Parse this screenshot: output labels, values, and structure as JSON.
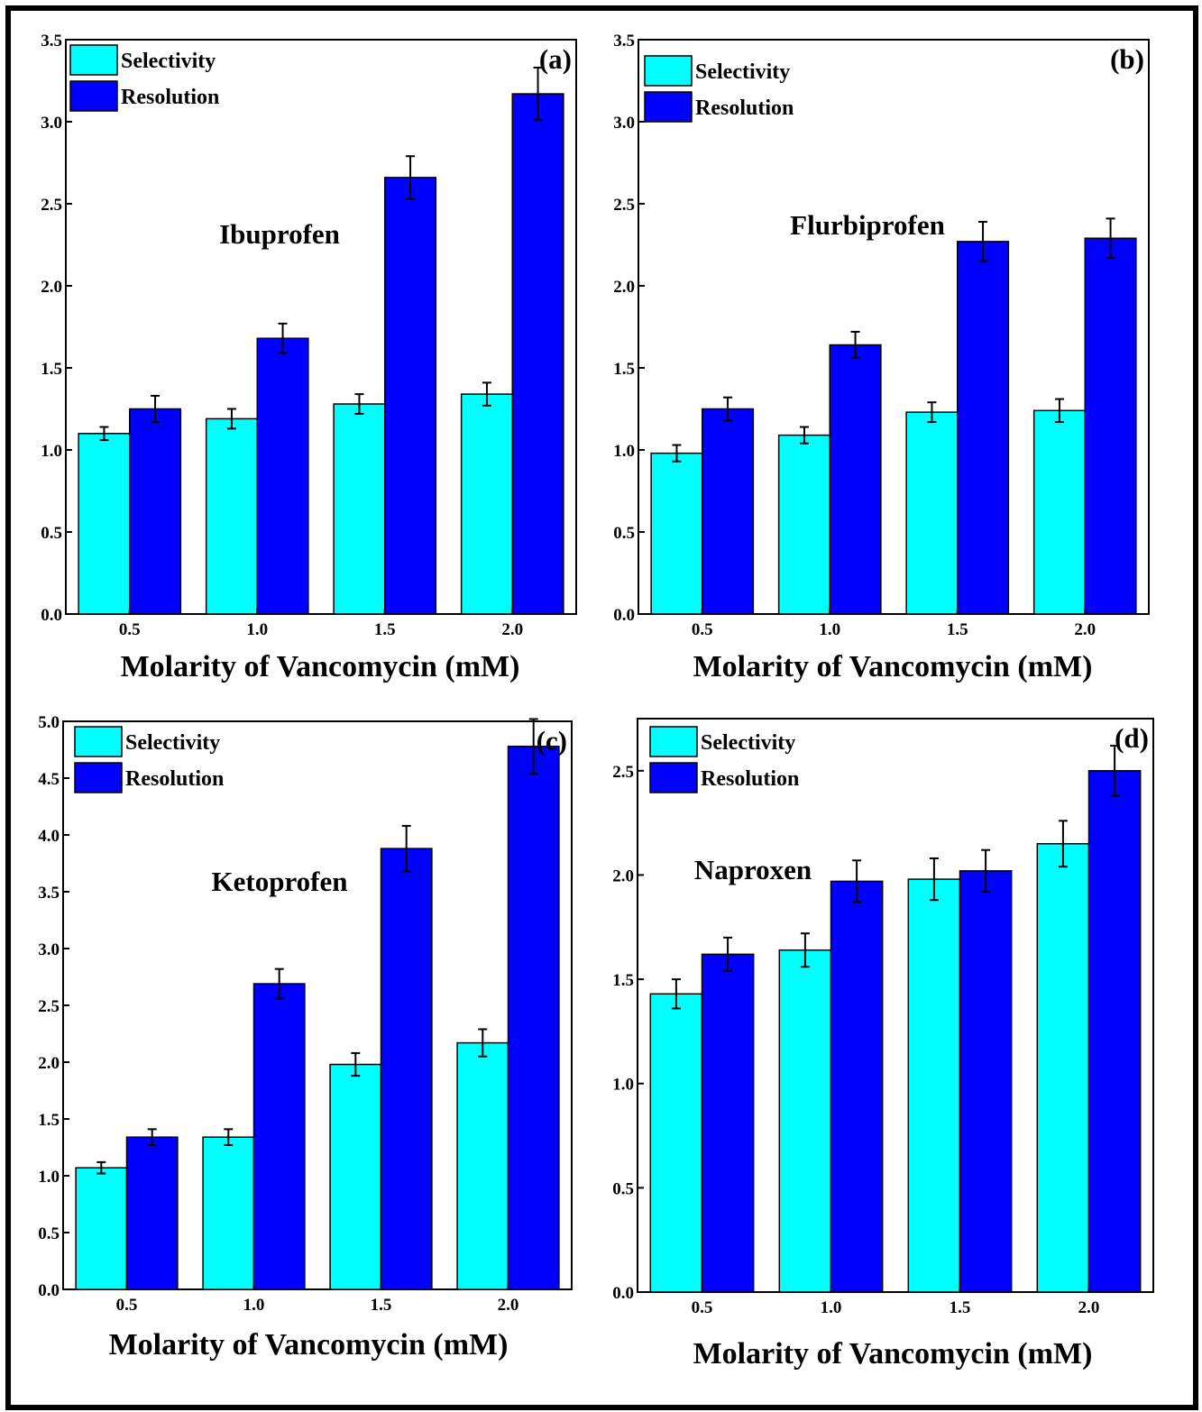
{
  "colors": {
    "selectivity": "#00FFFF",
    "resolution": "#0000FF",
    "frame": "#000000"
  },
  "chart_data": [
    {
      "type": "bar",
      "panel_label": "(a)",
      "title": "Ibuprofen",
      "xlabel": "Molarity of Vancomycin (mM)",
      "ylabel": "",
      "ylim": [
        0,
        3.5
      ],
      "yticks": [
        "0.0",
        "0.5",
        "1.0",
        "1.5",
        "2.0",
        "2.5",
        "3.0",
        "3.5"
      ],
      "legend_position": "top-left",
      "categories": [
        "0.5",
        "1.0",
        "1.5",
        "2.0"
      ],
      "series": [
        {
          "name": "Selectivity",
          "values": [
            1.1,
            1.19,
            1.28,
            1.34
          ],
          "errors": [
            0.04,
            0.06,
            0.06,
            0.07
          ]
        },
        {
          "name": "Resolution",
          "values": [
            1.25,
            1.68,
            2.66,
            3.17
          ],
          "errors": [
            0.08,
            0.09,
            0.13,
            0.16
          ]
        }
      ]
    },
    {
      "type": "bar",
      "panel_label": "(b)",
      "title": "Flurbiprofen",
      "xlabel": "Molarity of Vancomycin (mM)",
      "ylabel": "",
      "ylim": [
        0,
        3.5
      ],
      "yticks": [
        "0.0",
        "0.5",
        "1.0",
        "1.5",
        "2.0",
        "2.5",
        "3.0",
        "3.5"
      ],
      "legend_position": "top-left",
      "categories": [
        "0.5",
        "1.0",
        "1.5",
        "2.0"
      ],
      "series": [
        {
          "name": "Selectivity",
          "values": [
            0.98,
            1.09,
            1.23,
            1.24
          ],
          "errors": [
            0.05,
            0.05,
            0.06,
            0.07
          ]
        },
        {
          "name": "Resolution",
          "values": [
            1.25,
            1.64,
            2.27,
            2.29
          ],
          "errors": [
            0.07,
            0.08,
            0.12,
            0.12
          ]
        }
      ]
    },
    {
      "type": "bar",
      "panel_label": "(c)",
      "title": "Ketoprofen",
      "xlabel": "Molarity of Vancomycin (mM)",
      "ylabel": "",
      "ylim": [
        0,
        5.0
      ],
      "yticks": [
        "0.0",
        "0.5",
        "1.0",
        "1.5",
        "2.0",
        "2.5",
        "3.0",
        "3.5",
        "4.0",
        "4.5",
        "5.0"
      ],
      "legend_position": "top-left",
      "categories": [
        "0.5",
        "1.0",
        "1.5",
        "2.0"
      ],
      "series": [
        {
          "name": "Selectivity",
          "values": [
            1.07,
            1.34,
            1.98,
            2.17
          ],
          "errors": [
            0.05,
            0.07,
            0.1,
            0.12
          ]
        },
        {
          "name": "Resolution",
          "values": [
            1.34,
            2.69,
            3.88,
            4.78
          ],
          "errors": [
            0.07,
            0.13,
            0.2,
            0.24
          ]
        }
      ]
    },
    {
      "type": "bar",
      "panel_label": "(d)",
      "title": "Naproxen",
      "xlabel": "Molarity of Vancomycin (mM)",
      "ylabel": "",
      "ylim": [
        0,
        2.75
      ],
      "yticks": [
        "0.0",
        "0.5",
        "1.0",
        "1.5",
        "2.0",
        "2.5"
      ],
      "legend_position": "top-left",
      "categories": [
        "0.5",
        "1.0",
        "1.5",
        "2.0"
      ],
      "series": [
        {
          "name": "Selectivity",
          "values": [
            1.43,
            1.64,
            1.98,
            2.15
          ],
          "errors": [
            0.07,
            0.08,
            0.1,
            0.11
          ]
        },
        {
          "name": "Resolution",
          "values": [
            1.62,
            1.97,
            2.02,
            2.5
          ],
          "errors": [
            0.08,
            0.1,
            0.1,
            0.12
          ]
        }
      ]
    }
  ]
}
